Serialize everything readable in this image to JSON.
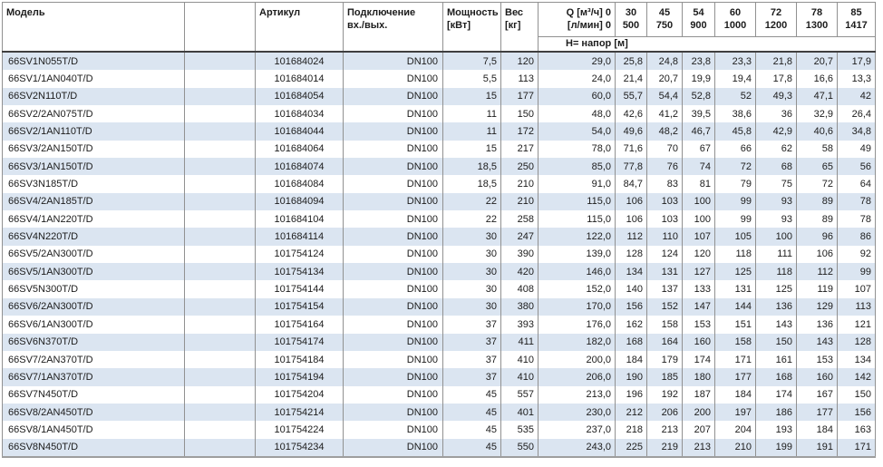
{
  "table": {
    "header": {
      "model": "Модель",
      "article": "Артикул",
      "connection_l1": "Подключение",
      "connection_l2": "вх./вых.",
      "power_l1": "Мощность",
      "power_l2": "[кВт]",
      "weight_l1": "Вес",
      "weight_l2": "[кг]",
      "q_l1": "Q [м³/ч] 0",
      "q_l2": "[л/мин] 0",
      "subheader": "Н= напор [м]",
      "flow_columns": [
        {
          "m3h": "30",
          "lmin": "500"
        },
        {
          "m3h": "45",
          "lmin": "750"
        },
        {
          "m3h": "54",
          "lmin": "900"
        },
        {
          "m3h": "60",
          "lmin": "1000"
        },
        {
          "m3h": "72",
          "lmin": "1200"
        },
        {
          "m3h": "78",
          "lmin": "1300"
        },
        {
          "m3h": "85",
          "lmin": "1417"
        }
      ]
    },
    "rows": [
      {
        "model": "66SV1N055T/D",
        "article": "101684024",
        "connection": "DN100",
        "power": "7,5",
        "weight": "120",
        "h0": "29,0",
        "h": [
          "25,8",
          "24,8",
          "23,8",
          "23,3",
          "21,8",
          "20,7",
          "17,9"
        ]
      },
      {
        "model": "66SV1/1AN040T/D",
        "article": "101684014",
        "connection": "DN100",
        "power": "5,5",
        "weight": "113",
        "h0": "24,0",
        "h": [
          "21,4",
          "20,7",
          "19,9",
          "19,4",
          "17,8",
          "16,6",
          "13,3"
        ]
      },
      {
        "model": "66SV2N110T/D",
        "article": "101684054",
        "connection": "DN100",
        "power": "15",
        "weight": "177",
        "h0": "60,0",
        "h": [
          "55,7",
          "54,4",
          "52,8",
          "52",
          "49,3",
          "47,1",
          "42"
        ]
      },
      {
        "model": "66SV2/2AN075T/D",
        "article": "101684034",
        "connection": "DN100",
        "power": "11",
        "weight": "150",
        "h0": "48,0",
        "h": [
          "42,6",
          "41,2",
          "39,5",
          "38,6",
          "36",
          "32,9",
          "26,4"
        ]
      },
      {
        "model": "66SV2/1AN110T/D",
        "article": "101684044",
        "connection": "DN100",
        "power": "11",
        "weight": "172",
        "h0": "54,0",
        "h": [
          "49,6",
          "48,2",
          "46,7",
          "45,8",
          "42,9",
          "40,6",
          "34,8"
        ]
      },
      {
        "model": "66SV3/2AN150T/D",
        "article": "101684064",
        "connection": "DN100",
        "power": "15",
        "weight": "217",
        "h0": "78,0",
        "h": [
          "71,6",
          "70",
          "67",
          "66",
          "62",
          "58",
          "49"
        ]
      },
      {
        "model": "66SV3/1AN150T/D",
        "article": "101684074",
        "connection": "DN100",
        "power": "18,5",
        "weight": "250",
        "h0": "85,0",
        "h": [
          "77,8",
          "76",
          "74",
          "72",
          "68",
          "65",
          "56"
        ]
      },
      {
        "model": "66SV3N185T/D",
        "article": "101684084",
        "connection": "DN100",
        "power": "18,5",
        "weight": "210",
        "h0": "91,0",
        "h": [
          "84,7",
          "83",
          "81",
          "79",
          "75",
          "72",
          "64"
        ]
      },
      {
        "model": "66SV4/2AN185T/D",
        "article": "101684094",
        "connection": "DN100",
        "power": "22",
        "weight": "210",
        "h0": "115,0",
        "h": [
          "106",
          "103",
          "100",
          "99",
          "93",
          "89",
          "78"
        ]
      },
      {
        "model": "66SV4/1AN220T/D",
        "article": "101684104",
        "connection": "DN100",
        "power": "22",
        "weight": "258",
        "h0": "115,0",
        "h": [
          "106",
          "103",
          "100",
          "99",
          "93",
          "89",
          "78"
        ]
      },
      {
        "model": "66SV4N220T/D",
        "article": "101684114",
        "connection": "DN100",
        "power": "30",
        "weight": "247",
        "h0": "122,0",
        "h": [
          "112",
          "110",
          "107",
          "105",
          "100",
          "96",
          "86"
        ]
      },
      {
        "model": "66SV5/2AN300T/D",
        "article": "101754124",
        "connection": "DN100",
        "power": "30",
        "weight": "390",
        "h0": "139,0",
        "h": [
          "128",
          "124",
          "120",
          "118",
          "111",
          "106",
          "92"
        ]
      },
      {
        "model": "66SV5/1AN300T/D",
        "article": "101754134",
        "connection": "DN100",
        "power": "30",
        "weight": "420",
        "h0": "146,0",
        "h": [
          "134",
          "131",
          "127",
          "125",
          "118",
          "112",
          "99"
        ]
      },
      {
        "model": "66SV5N300T/D",
        "article": "101754144",
        "connection": "DN100",
        "power": "30",
        "weight": "408",
        "h0": "152,0",
        "h": [
          "140",
          "137",
          "133",
          "131",
          "125",
          "119",
          "107"
        ]
      },
      {
        "model": "66SV6/2AN300T/D",
        "article": "101754154",
        "connection": "DN100",
        "power": "30",
        "weight": "380",
        "h0": "170,0",
        "h": [
          "156",
          "152",
          "147",
          "144",
          "136",
          "129",
          "113"
        ]
      },
      {
        "model": "66SV6/1AN300T/D",
        "article": "101754164",
        "connection": "DN100",
        "power": "37",
        "weight": "393",
        "h0": "176,0",
        "h": [
          "162",
          "158",
          "153",
          "151",
          "143",
          "136",
          "121"
        ]
      },
      {
        "model": "66SV6N370T/D",
        "article": "101754174",
        "connection": "DN100",
        "power": "37",
        "weight": "411",
        "h0": "182,0",
        "h": [
          "168",
          "164",
          "160",
          "158",
          "150",
          "143",
          "128"
        ]
      },
      {
        "model": "66SV7/2AN370T/D",
        "article": "101754184",
        "connection": "DN100",
        "power": "37",
        "weight": "410",
        "h0": "200,0",
        "h": [
          "184",
          "179",
          "174",
          "171",
          "161",
          "153",
          "134"
        ]
      },
      {
        "model": "66SV7/1AN370T/D",
        "article": "101754194",
        "connection": "DN100",
        "power": "37",
        "weight": "410",
        "h0": "206,0",
        "h": [
          "190",
          "185",
          "180",
          "177",
          "168",
          "160",
          "142"
        ]
      },
      {
        "model": "66SV7N450T/D",
        "article": "101754204",
        "connection": "DN100",
        "power": "45",
        "weight": "557",
        "h0": "213,0",
        "h": [
          "196",
          "192",
          "187",
          "184",
          "174",
          "167",
          "150"
        ]
      },
      {
        "model": "66SV8/2AN450T/D",
        "article": "101754214",
        "connection": "DN100",
        "power": "45",
        "weight": "401",
        "h0": "230,0",
        "h": [
          "212",
          "206",
          "200",
          "197",
          "186",
          "177",
          "156"
        ]
      },
      {
        "model": "66SV8/1AN450T/D",
        "article": "101754224",
        "connection": "DN100",
        "power": "45",
        "weight": "535",
        "h0": "237,0",
        "h": [
          "218",
          "213",
          "207",
          "204",
          "193",
          "184",
          "163"
        ]
      },
      {
        "model": "66SV8N450T/D",
        "article": "101754234",
        "connection": "DN100",
        "power": "45",
        "weight": "550",
        "h0": "243,0",
        "h": [
          "225",
          "219",
          "213",
          "210",
          "199",
          "191",
          "171"
        ]
      }
    ]
  },
  "colors": {
    "row_stripe": "#dbe5f1",
    "grid_line": "#919191",
    "header_separator": "#3f3f3f",
    "bottom_border": "#9e9e9e",
    "text": "#1c1c1c",
    "background": "#ffffff"
  }
}
